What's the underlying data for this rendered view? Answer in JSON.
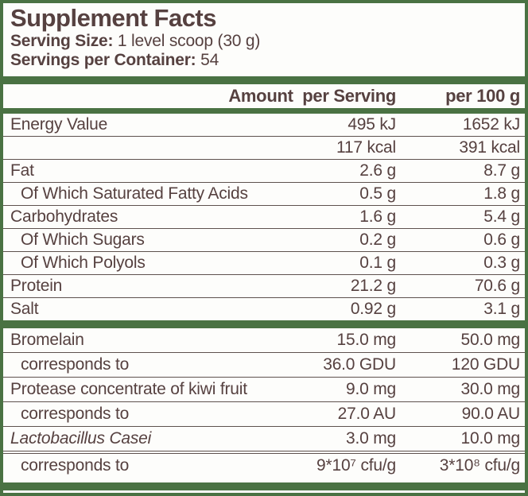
{
  "title": "Supplement Facts",
  "serving_info": {
    "serving_size_label": "Serving Size:",
    "serving_size_value": " 1 level scoop (30 g)",
    "servings_per_container_label": "Servings per Container:",
    "servings_per_container_value": " 54"
  },
  "table": {
    "header": {
      "amount_per_serving": "Amount  per Serving",
      "per_100g": "per 100 g"
    },
    "nutrition_rows": [
      {
        "label": "Energy Value",
        "per_serving": "495 kJ",
        "per_100g": "1652 kJ"
      },
      {
        "label": "",
        "per_serving": "117 kcal",
        "per_100g": "391 kcal"
      },
      {
        "label": "Fat",
        "per_serving": "2.6 g",
        "per_100g": "8.7 g"
      },
      {
        "label": "Of Which Saturated Fatty Acids",
        "per_serving": "0.5 g",
        "per_100g": "1.8 g"
      },
      {
        "label": "Carbohydrates",
        "per_serving": "1.6 g",
        "per_100g": "5.4 g"
      },
      {
        "label": "Of Which Sugars",
        "per_serving": "0.2 g",
        "per_100g": "0.6 g"
      },
      {
        "label": "Of Which Polyols",
        "per_serving": "0.1 g",
        "per_100g": "0.3 g"
      },
      {
        "label": "Protein",
        "per_serving": "21.2 g",
        "per_100g": "70.6 g"
      },
      {
        "label": "Salt",
        "per_serving": "0.92 g",
        "per_100g": "3.1 g"
      }
    ],
    "active_rows": [
      {
        "label": "Bromelain",
        "per_serving": "15.0 mg",
        "per_100g": "50.0 mg"
      },
      {
        "label": "corresponds to",
        "per_serving": "36.0 GDU",
        "per_100g": "120 GDU"
      },
      {
        "label": "Protease concentrate of kiwi fruit",
        "per_serving": "9.0 mg",
        "per_100g": "30.0 mg"
      },
      {
        "label": "corresponds to",
        "per_serving": "27.0 AU",
        "per_100g": "90.0 AU"
      },
      {
        "label": "Lactobacillus Casei",
        "per_serving": "3.0 mg",
        "per_100g": "10.0 mg"
      },
      {
        "label": "corresponds to",
        "per_serving": "9*10⁷ cfu/g",
        "per_100g": "3*10⁸ cfu/g"
      }
    ]
  },
  "colors": {
    "green": "#4a7243",
    "text_brown": "#564140",
    "divider": "#5e524e"
  }
}
